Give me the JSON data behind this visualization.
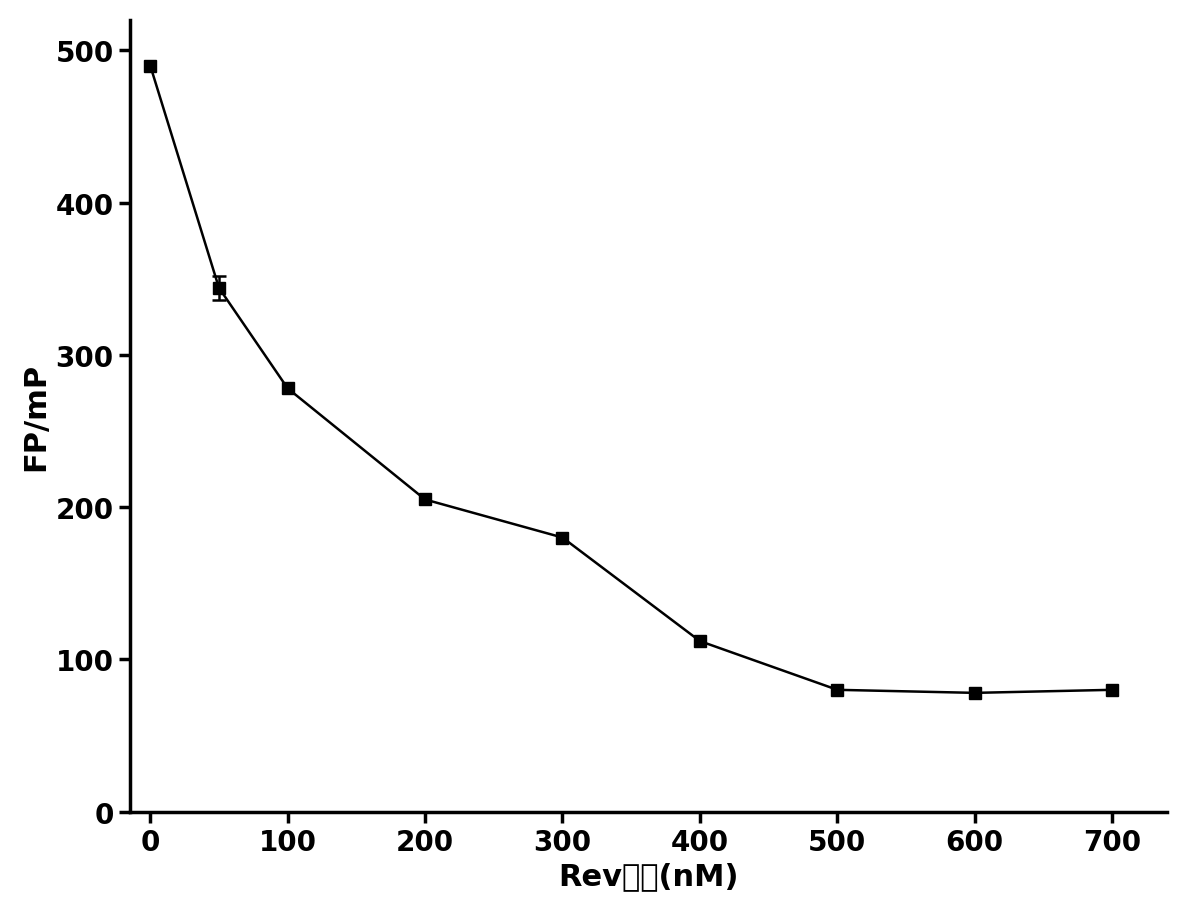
{
  "x_main": [
    0,
    50,
    100,
    200,
    300,
    400,
    500,
    600,
    700
  ],
  "y_main": [
    490,
    344,
    278,
    205,
    180,
    112,
    80,
    78,
    80
  ],
  "error_x": [
    50
  ],
  "error_y_center": [
    344
  ],
  "error_y_err": [
    8
  ],
  "xlabel": "Rev多肽(nM)",
  "ylabel": "FP/mP",
  "xlim": [
    -15,
    740
  ],
  "ylim": [
    0,
    520
  ],
  "yticks": [
    0,
    100,
    200,
    300,
    400,
    500
  ],
  "xticks": [
    0,
    100,
    200,
    300,
    400,
    500,
    600,
    700
  ],
  "line_color": "#000000",
  "marker_color": "#000000",
  "marker": "s",
  "marker_size": 9,
  "line_width": 1.8,
  "background_color": "#ffffff",
  "axis_linewidth": 2.5,
  "tick_fontsize": 20,
  "label_fontsize": 22,
  "label_fontweight": "bold"
}
